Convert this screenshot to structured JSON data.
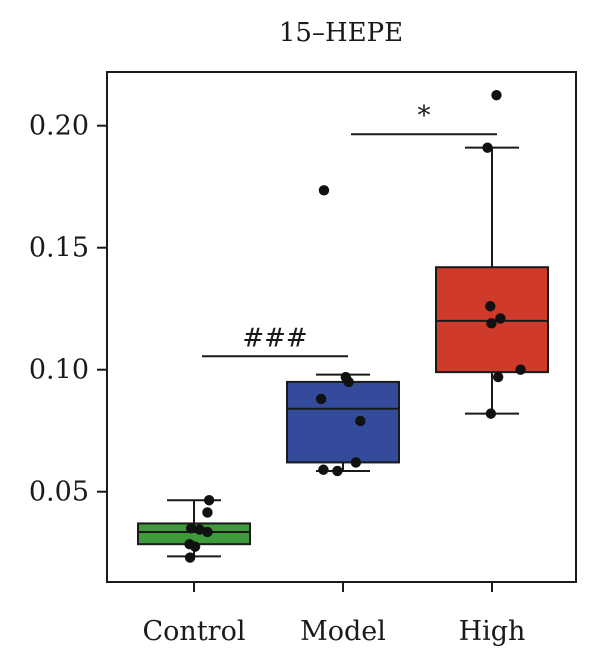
{
  "chart_data": {
    "type": "boxplot",
    "title": "15–HEPE",
    "xlabel": "",
    "ylabel": "",
    "ylim": [
      0.013,
      0.222
    ],
    "y_ticks": [
      0.05,
      0.1,
      0.15,
      0.2
    ],
    "y_tick_labels": [
      "0.05",
      "0.10",
      "0.15",
      "0.20"
    ],
    "categories": [
      "Control",
      "Model",
      "High"
    ],
    "grid": false,
    "legend": "none",
    "groups": [
      {
        "name": "Control",
        "color": "#3f9a3c",
        "box": {
          "whisker_low": 0.0235,
          "q1": 0.0285,
          "median": 0.0335,
          "q3": 0.037,
          "whisker_high": 0.0465
        },
        "points": [
          0.0465,
          0.0415,
          0.035,
          0.0345,
          0.0335,
          0.0285,
          0.0275,
          0.023
        ],
        "jitter": [
          0.27,
          0.24,
          -0.05,
          0.1,
          0.24,
          -0.08,
          0.02,
          -0.07
        ]
      },
      {
        "name": "Model",
        "color": "#344b9c",
        "box": {
          "whisker_low": 0.0585,
          "q1": 0.062,
          "median": 0.084,
          "q3": 0.095,
          "whisker_high": 0.098
        },
        "points": [
          0.1735,
          0.097,
          0.095,
          0.088,
          0.079,
          0.062,
          0.059,
          0.0585
        ],
        "jitter": [
          -0.34,
          0.05,
          0.1,
          -0.39,
          0.31,
          0.23,
          -0.35,
          -0.1
        ],
        "outliers": [
          0.1735
        ]
      },
      {
        "name": "High",
        "color": "#cf3a2a",
        "box": {
          "whisker_low": 0.082,
          "q1": 0.099,
          "median": 0.12,
          "q3": 0.142,
          "whisker_high": 0.191
        },
        "points": [
          0.2125,
          0.191,
          0.126,
          0.121,
          0.119,
          0.1,
          0.097,
          0.082
        ],
        "jitter": [
          0.08,
          -0.08,
          -0.03,
          0.15,
          -0.01,
          0.51,
          0.11,
          -0.02
        ],
        "outliers": [
          0.2125
        ]
      }
    ],
    "annotations": [
      {
        "label": "###",
        "from": "Control",
        "to": "Model",
        "y": 0.1055
      },
      {
        "label": "*",
        "from": "Model",
        "to": "High",
        "y": 0.1965
      }
    ]
  }
}
